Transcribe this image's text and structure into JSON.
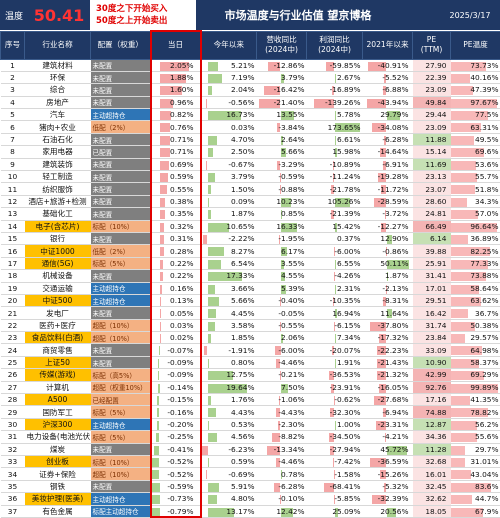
{
  "header": {
    "temp_label": "温度",
    "temp_value": "50.41",
    "rule_buy": "30度之下开始买入",
    "rule_sell": "50度之上开始卖出",
    "title": "市场温度与行业估值 望京博格",
    "date": "2025/3/17"
  },
  "columns": [
    "序号",
    "行业名称",
    "配置（权重）",
    "当日",
    "今年以来",
    "营收同比\n(2024中)",
    "利润同比\n(2024中)",
    "2021年以来",
    "PE\n(TTM)",
    "PE温度"
  ],
  "colors": {
    "header": "#1f3864",
    "pos_bar": "#f4a6a6",
    "neg_bar": "#a9d18e",
    "pe_bar": "#f8b8b8",
    "pe_low": "#c6e0b4",
    "day_border": "#e00000",
    "cfg_gray": "#7f7f7f",
    "cfg_orange": "#f4b183",
    "cfg_blue": "#2e75b6"
  },
  "rows": [
    {
      "no": "1",
      "name": "建筑材料",
      "cfg": "未配置",
      "cfgc": "gray",
      "day": "2.05%",
      "ytd": "5.21%",
      "rev": "-12.86%",
      "prof": "-59.85%",
      "y21": "-40.91%",
      "pe": "27.90",
      "pet": "73.73%",
      "nhl": false
    },
    {
      "no": "2",
      "name": "环保",
      "cfg": "未配置",
      "cfgc": "gray",
      "day": "1.88%",
      "ytd": "7.19%",
      "rev": "3.79%",
      "prof": "2.67%",
      "y21": "-5.52%",
      "pe": "22.39",
      "pet": "40.16%",
      "nhl": false
    },
    {
      "no": "3",
      "name": "综合",
      "cfg": "未配置",
      "cfgc": "gray",
      "day": "1.60%",
      "ytd": "2.04%",
      "rev": "-16.42%",
      "prof": "-16.89%",
      "y21": "-6.88%",
      "pe": "23.09",
      "pet": "47.39%",
      "nhl": false
    },
    {
      "no": "4",
      "name": "房地产",
      "cfg": "未配置",
      "cfgc": "gray",
      "day": "0.96%",
      "ytd": "-0.56%",
      "rev": "-21.40%",
      "prof": "-139.26%",
      "y21": "-43.94%",
      "pe": "49.84",
      "pet": "97.67%",
      "nhl": false
    },
    {
      "no": "5",
      "name": "汽车",
      "cfg": "主动超持仓",
      "cfgc": "blue",
      "day": "0.82%",
      "ytd": "16.73%",
      "rev": "13.55%",
      "prof": "5.78%",
      "y21": "29.79%",
      "pe": "29.44",
      "pet": "77.5%",
      "nhl": false
    },
    {
      "no": "6",
      "name": "猪肉+农业",
      "cfg": "低配（2%）",
      "cfgc": "orange",
      "day": "0.76%",
      "ytd": "0.03%",
      "rev": "-3.84%",
      "prof": "173.65%",
      "y21": "-34.08%",
      "pe": "23.09",
      "pet": "63.31%",
      "nhl": false
    },
    {
      "no": "7",
      "name": "石油石化",
      "cfg": "未配置",
      "cfgc": "gray",
      "day": "0.71%",
      "ytd": "4.70%",
      "rev": "2.64%",
      "prof": "6.61%",
      "y21": "-6.28%",
      "pe": "11.88",
      "pet": "49.5%",
      "nhl": false
    },
    {
      "no": "8",
      "name": "家用电器",
      "cfg": "已配置",
      "cfgc": "gray",
      "day": "0.71%",
      "ytd": "2.50%",
      "rev": "5.66%",
      "prof": "15.98%",
      "y21": "-14.64%",
      "pe": "15.14",
      "pet": "69.6%",
      "nhl": false
    },
    {
      "no": "9",
      "name": "建筑装饰",
      "cfg": "未配置",
      "cfgc": "gray",
      "day": "0.69%",
      "ytd": "-0.67%",
      "rev": "-3.29%",
      "prof": "-10.89%",
      "y21": "-6.91%",
      "pe": "11.69",
      "pet": "53.6%",
      "nhl": false
    },
    {
      "no": "10",
      "name": "轻工制造",
      "cfg": "未配置",
      "cfgc": "gray",
      "day": "0.59%",
      "ytd": "3.79%",
      "rev": "-0.59%",
      "prof": "-11.24%",
      "y21": "-19.28%",
      "pe": "23.13",
      "pet": "55.7%",
      "nhl": false
    },
    {
      "no": "11",
      "name": "纺织服饰",
      "cfg": "未配置",
      "cfgc": "gray",
      "day": "0.55%",
      "ytd": "1.50%",
      "rev": "-0.88%",
      "prof": "-21.78%",
      "y21": "-11.72%",
      "pe": "23.07",
      "pet": "51.8%",
      "nhl": false
    },
    {
      "no": "12",
      "name": "酒店+旅游+检测",
      "cfg": "未配置",
      "cfgc": "gray",
      "day": "0.38%",
      "ytd": "0.09%",
      "rev": "10.23%",
      "prof": "105.26%",
      "y21": "-28.59%",
      "pe": "28.60",
      "pet": "34.3%",
      "nhl": false
    },
    {
      "no": "13",
      "name": "基础化工",
      "cfg": "未配置",
      "cfgc": "gray",
      "day": "0.35%",
      "ytd": "1.87%",
      "rev": "0.85%",
      "prof": "-21.39%",
      "y21": "-3.72%",
      "pe": "24.81",
      "pet": "57.0%",
      "nhl": false
    },
    {
      "no": "14",
      "name": "电子(含芯片)",
      "cfg": "标配（10%）",
      "cfgc": "orange",
      "day": "0.32%",
      "ytd": "10.65%",
      "rev": "16.33%",
      "prof": "15.42%",
      "y21": "-12.27%",
      "pe": "66.49",
      "pet": "96.64%",
      "nhl": true
    },
    {
      "no": "15",
      "name": "银行",
      "cfg": "未配置",
      "cfgc": "gray",
      "day": "0.31%",
      "ytd": "-2.22%",
      "rev": "-1.95%",
      "prof": "0.37%",
      "y21": "12.90%",
      "pe": "6.14",
      "pet": "36.89%",
      "nhl": false
    },
    {
      "no": "16",
      "name": "中证1000",
      "cfg": "低配（2%）",
      "cfgc": "orange",
      "day": "0.28%",
      "ytd": "8.27%",
      "rev": "6.17%",
      "prof": "-6.00%",
      "y21": "-0.86%",
      "pe": "39.88",
      "pet": "82.25%",
      "nhl": true
    },
    {
      "no": "17",
      "name": "通信(5G)",
      "cfg": "标配（5%）",
      "cfgc": "orange",
      "day": "0.22%",
      "ytd": "6.54%",
      "rev": "3.55%",
      "prof": "6.55%",
      "y21": "50.11%",
      "pe": "25.91",
      "pet": "77.33%",
      "nhl": true
    },
    {
      "no": "18",
      "name": "机械设备",
      "cfg": "未配置",
      "cfgc": "gray",
      "day": "0.22%",
      "ytd": "17.33%",
      "rev": "4.55%",
      "prof": "-4.26%",
      "y21": "1.87%",
      "pe": "31.41",
      "pet": "73.88%",
      "nhl": false
    },
    {
      "no": "19",
      "name": "交通运输",
      "cfg": "主动超持仓",
      "cfgc": "blue",
      "day": "0.16%",
      "ytd": "3.66%",
      "rev": "5.39%",
      "prof": "2.31%",
      "y21": "-2.13%",
      "pe": "17.01",
      "pet": "58.64%",
      "nhl": false
    },
    {
      "no": "20",
      "name": "中证500",
      "cfg": "主动超持仓",
      "cfgc": "blue",
      "day": "0.13%",
      "ytd": "5.66%",
      "rev": "-0.40%",
      "prof": "-10.35%",
      "y21": "-8.31%",
      "pe": "29.51",
      "pet": "63.62%",
      "nhl": true
    },
    {
      "no": "21",
      "name": "发电厂",
      "cfg": "未配置",
      "cfgc": "gray",
      "day": "0.05%",
      "ytd": "4.45%",
      "rev": "-0.05%",
      "prof": "16.94%",
      "y21": "11.64%",
      "pe": "16.42",
      "pet": "36.7%",
      "nhl": false
    },
    {
      "no": "22",
      "name": "医药+医疗",
      "cfg": "超配（10%）",
      "cfgc": "orange",
      "day": "0.03%",
      "ytd": "3.58%",
      "rev": "-0.55%",
      "prof": "-6.15%",
      "y21": "-37.80%",
      "pe": "31.74",
      "pet": "50.38%",
      "nhl": false
    },
    {
      "no": "23",
      "name": "食品饮料(白酒)",
      "cfg": "超配（10%）",
      "cfgc": "orange",
      "day": "0.02%",
      "ytd": "1.85%",
      "rev": "2.06%",
      "prof": "7.34%",
      "y21": "-17.32%",
      "pe": "23.84",
      "pet": "29.57%",
      "nhl": true
    },
    {
      "no": "24",
      "name": "商贸零售",
      "cfg": "未配置",
      "cfgc": "gray",
      "day": "-0.07%",
      "ytd": "-1.91%",
      "rev": "-6.00%",
      "prof": "-20.07%",
      "y21": "-22.23%",
      "pe": "33.09",
      "pet": "64.98%",
      "nhl": false
    },
    {
      "no": "25",
      "name": "上证50",
      "cfg": "未配置",
      "cfgc": "gray",
      "day": "-0.09%",
      "ytd": "0.80%",
      "rev": "-4.46%",
      "prof": "1.91%",
      "y21": "-21.43%",
      "pe": "10.90",
      "pet": "58.37%",
      "nhl": true
    },
    {
      "no": "26",
      "name": "传媒(游戏)",
      "cfg": "标配（高5%）",
      "cfgc": "orange",
      "day": "-0.09%",
      "ytd": "12.75%",
      "rev": "-0.21%",
      "prof": "-36.53%",
      "y21": "-21.32%",
      "pe": "42.99",
      "pet": "69.29%",
      "nhl": true
    },
    {
      "no": "27",
      "name": "计算机",
      "cfg": "超配（权重10%）",
      "cfgc": "orange",
      "day": "-0.14%",
      "ytd": "19.64%",
      "rev": "7.50%",
      "prof": "-23.91%",
      "y21": "-16.05%",
      "pe": "92.76",
      "pet": "99.89%",
      "nhl": false
    },
    {
      "no": "28",
      "name": "A500",
      "cfg": "已经配置",
      "cfgc": "orange",
      "day": "-0.15%",
      "ytd": "1.76%",
      "rev": "-1.06%",
      "prof": "-0.62%",
      "y21": "-27.68%",
      "pe": "17.16",
      "pet": "41.35%",
      "nhl": true
    },
    {
      "no": "29",
      "name": "国防军工",
      "cfg": "标配（5%）",
      "cfgc": "orange",
      "day": "-0.16%",
      "ytd": "4.43%",
      "rev": "-4.43%",
      "prof": "-32.30%",
      "y21": "-6.94%",
      "pe": "74.88",
      "pet": "78.82%",
      "nhl": false
    },
    {
      "no": "30",
      "name": "沪深300",
      "cfg": "主动超持仓",
      "cfgc": "blue",
      "day": "-0.20%",
      "ytd": "0.53%",
      "rev": "-2.30%",
      "prof": "1.00%",
      "y21": "-23.31%",
      "pe": "12.87",
      "pet": "56.2%",
      "nhl": true
    },
    {
      "no": "31",
      "name": "电力设备(电池光伏)",
      "cfg": "标配（5%）",
      "cfgc": "orange",
      "day": "-0.25%",
      "ytd": "4.56%",
      "rev": "-8.82%",
      "prof": "-34.50%",
      "y21": "-4.21%",
      "pe": "34.36",
      "pet": "55.6%",
      "nhl": false
    },
    {
      "no": "32",
      "name": "煤炭",
      "cfg": "未配置",
      "cfgc": "gray",
      "day": "-0.41%",
      "ytd": "-6.23%",
      "rev": "-13.34%",
      "prof": "-27.94%",
      "y21": "45.72%",
      "pe": "11.28",
      "pet": "29.7%",
      "nhl": false
    },
    {
      "no": "33",
      "name": "创业板",
      "cfg": "标配（10%）",
      "cfgc": "orange",
      "day": "-0.52%",
      "ytd": "0.59%",
      "rev": "-4.46%",
      "prof": "-7.42%",
      "y21": "-36.59%",
      "pe": "32.68",
      "pet": "31.01%",
      "nhl": true
    },
    {
      "no": "34",
      "name": "证券+保险",
      "cfg": "超配（10%）",
      "cfgc": "orange",
      "day": "-0.52%",
      "ytd": "-0.69%",
      "rev": "0.78%",
      "prof": "-1.58%",
      "y21": "-15.26%",
      "pe": "16.01",
      "pet": "43.04%",
      "nhl": false
    },
    {
      "no": "35",
      "name": "钢铁",
      "cfg": "未配置",
      "cfgc": "gray",
      "day": "-0.59%",
      "ytd": "5.91%",
      "rev": "-6.28%",
      "prof": "-68.41%",
      "y21": "-5.32%",
      "pe": "32.45",
      "pet": "83.6%",
      "nhl": false
    },
    {
      "no": "36",
      "name": "美妆护理(医美)",
      "cfg": "主动超持仓",
      "cfgc": "blue",
      "day": "-0.73%",
      "ytd": "4.80%",
      "rev": "-0.10%",
      "prof": "-5.85%",
      "y21": "-32.39%",
      "pe": "32.62",
      "pet": "44.7%",
      "nhl": true
    },
    {
      "no": "37",
      "name": "有色金属",
      "cfg": "标配主动超持仓",
      "cfgc": "blue",
      "day": "-0.79%",
      "ytd": "13.17%",
      "rev": "12.42%",
      "prof": "25.09%",
      "y21": "20.56%",
      "pe": "18.05",
      "pet": "67.9%",
      "nhl": false
    }
  ]
}
